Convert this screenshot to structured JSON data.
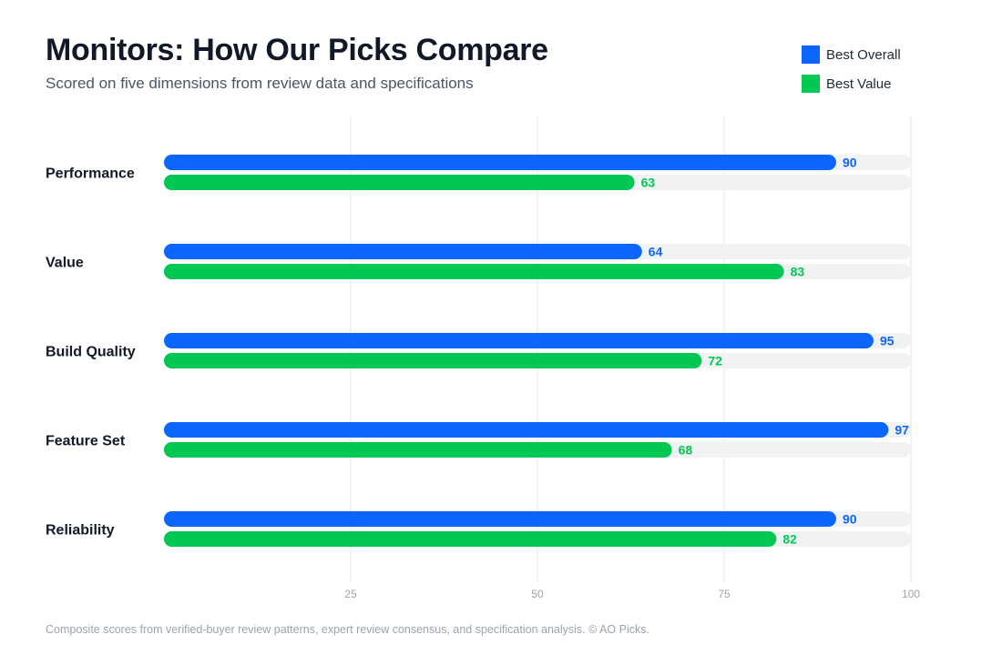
{
  "chart_data": {
    "type": "bar",
    "orientation": "horizontal",
    "title": "Monitors: How Our Picks Compare",
    "subtitle": "Scored on five dimensions from review data and specifications",
    "categories": [
      "Performance",
      "Value",
      "Build Quality",
      "Feature Set",
      "Reliability"
    ],
    "series": [
      {
        "name": "Best Overall",
        "color": "#0a66ff",
        "values": [
          90,
          64,
          95,
          97,
          90
        ]
      },
      {
        "name": "Best Value",
        "color": "#00c853",
        "values": [
          63,
          83,
          72,
          68,
          82
        ]
      }
    ],
    "xlim": [
      0,
      100
    ],
    "xticks": [
      25,
      50,
      75,
      100
    ],
    "grid": true,
    "legend": "top-right",
    "data_labels": true,
    "xlabel": "",
    "ylabel": ""
  },
  "footnote": "Composite scores from verified-buyer review patterns, expert review consensus, and specification analysis. © AO Picks.",
  "colors": {
    "track": "#f1f2f4",
    "grid": "#e5e7eb",
    "tick_text": "#9ca3af",
    "category_text": "#111827"
  }
}
